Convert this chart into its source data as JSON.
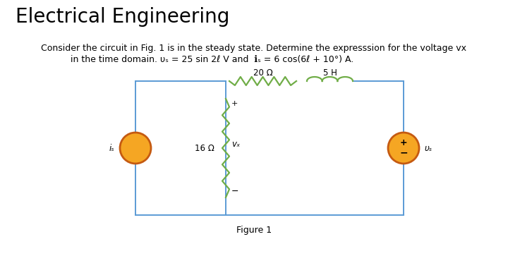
{
  "title": "Electrical Engineering",
  "desc1": "Consider the circuit in Fig. 1 is in the steady state. Determine the expresssion for the voltage v",
  "desc1_sub": "x",
  "desc2a": "in the time domain. ",
  "desc2b": "υ",
  "desc2b_sub": "s",
  "desc2c": " = 25 sin 2ℓ V and  ℹ",
  "desc2c_sub": "s",
  "desc2d": " = 6 cos(6ℓ + 10°) A.",
  "figure_label": "Figure 1",
  "bg_color": "#ffffff",
  "box_color": "#5b9bd5",
  "resistor_color": "#70ad47",
  "inductor_color": "#70ad47",
  "source_fill": "#f5a623",
  "source_outline": "#c55a11",
  "text_color": "#000000",
  "title_fontsize": 20,
  "body_fontsize": 9,
  "circuit": {
    "resistor_label": "20 Ω",
    "inductor_label": "5 H",
    "inner_resistor_label": "16 Ω",
    "vx_label": "vₓ",
    "vs_label": "υₛ",
    "is_label": "iₛ"
  }
}
